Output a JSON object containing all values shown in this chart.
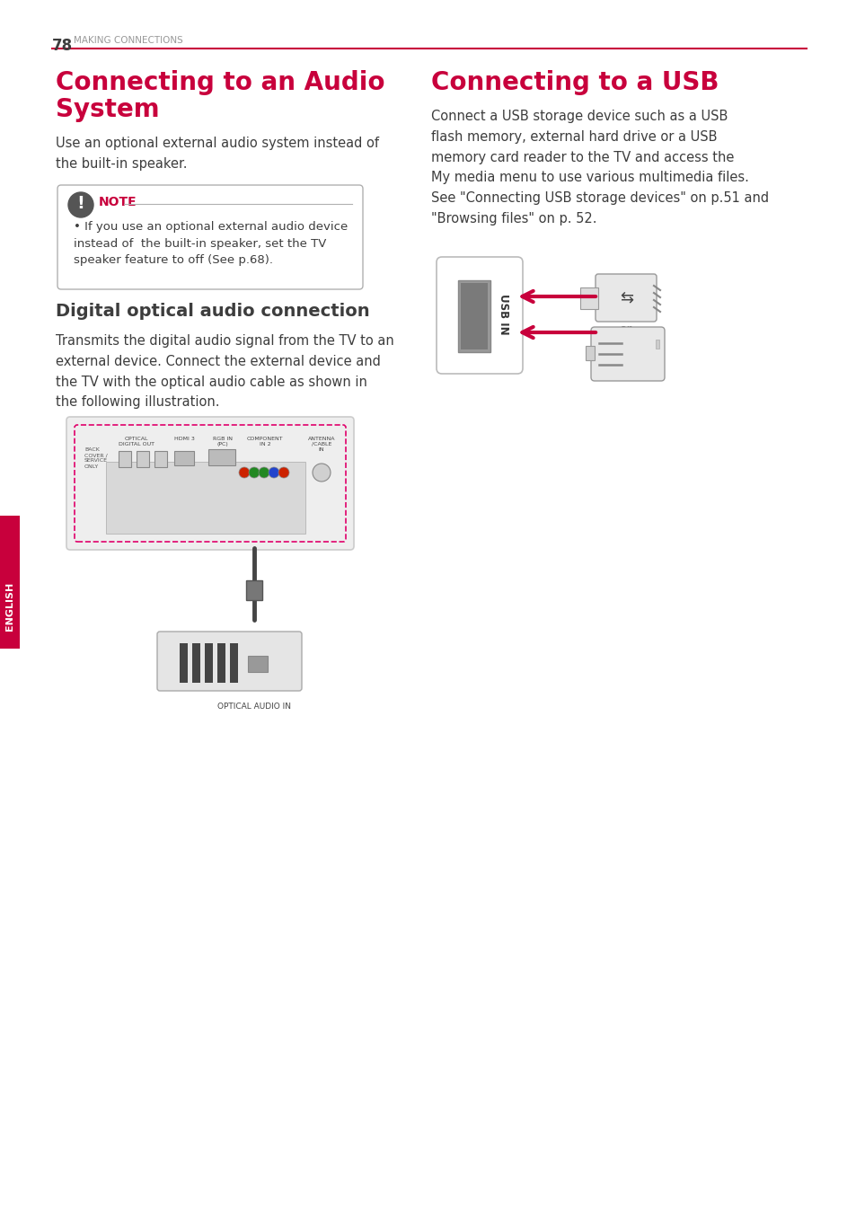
{
  "page_num": "78",
  "page_header": "MAKING CONNECTIONS",
  "header_line_color": "#c8003c",
  "left_title_line1": "Connecting to an Audio",
  "left_title_line2": "System",
  "left_body": "Use an optional external audio system instead of\nthe built-in speaker.",
  "note_title": "NOTE",
  "note_color": "#c8003c",
  "note_bullet": "If you use an optional external audio device\ninstead of  the built-in speaker, set the TV\nspeaker feature to off (See p.68).",
  "sub_title": "Digital optical audio connection",
  "sub_body": "Transmits the digital audio signal from the TV to an\nexternal device. Connect the external device and\nthe TV with the optical audio cable as shown in\nthe following illustration.",
  "right_title": "Connecting to a USB",
  "right_body": "Connect a USB storage device such as a USB\nflash memory, external hard drive or a USB\nmemory card reader to the TV and access the\nMy media menu to use various multimedia files.\nSee \"Connecting USB storage devices\" on p.51 and\n\"Browsing files\" on p. 52.",
  "english_tab_color": "#c8003c",
  "english_text": "ENGLISH",
  "bg_color": "#ffffff",
  "text_color": "#3d3d3d",
  "title_color": "#c8003c",
  "body_fontsize": 10.5,
  "title_fontsize": 20,
  "sub_title_fontsize": 14
}
